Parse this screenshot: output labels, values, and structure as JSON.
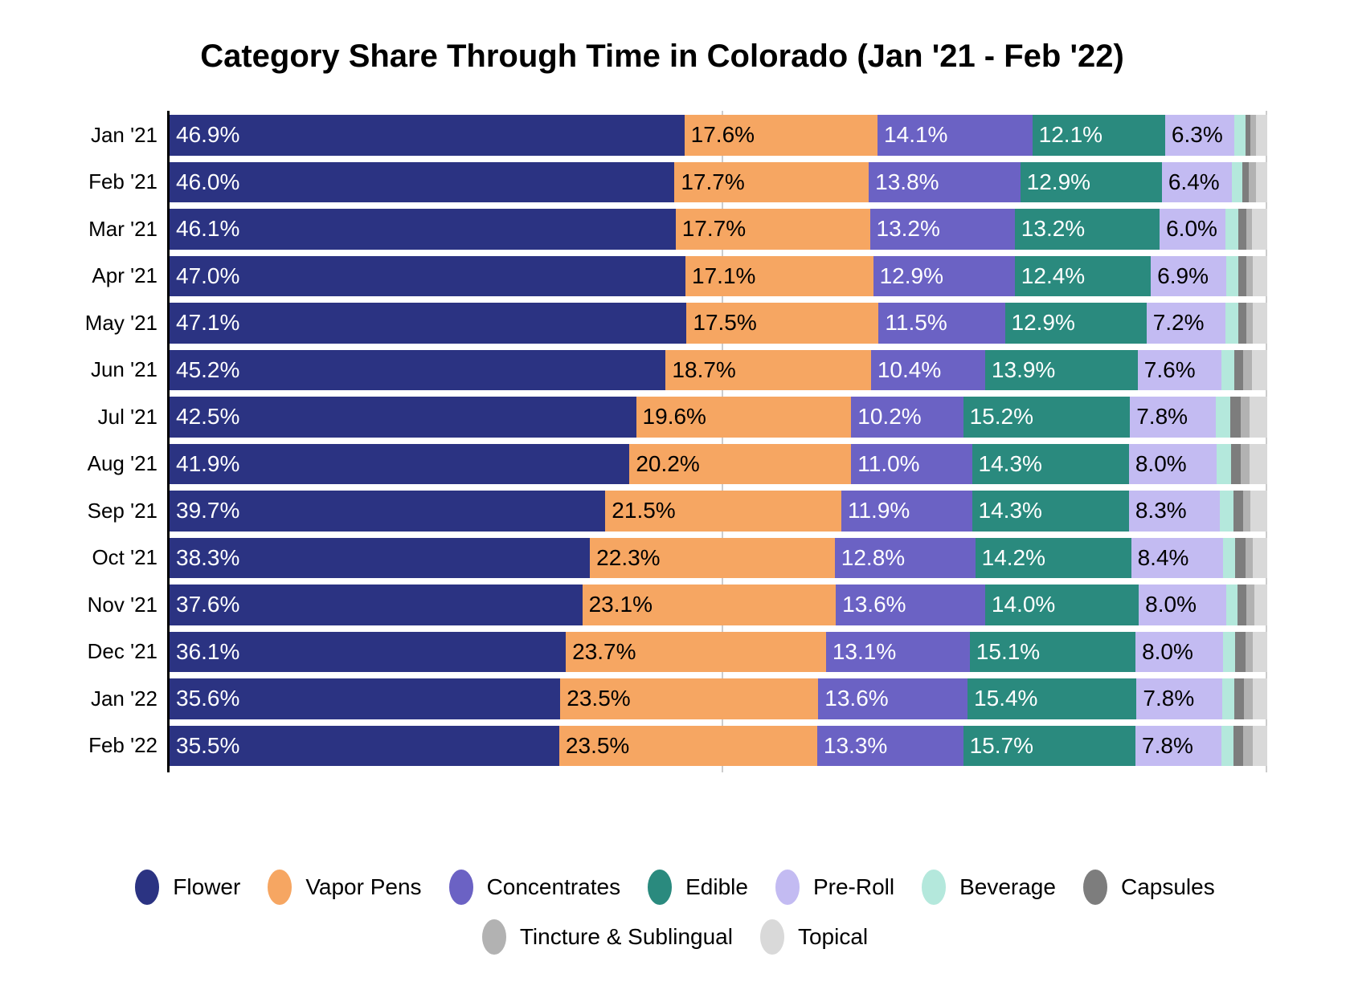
{
  "title": "Category Share Through Time in Colorado (Jan '21 - Feb '22)",
  "chart_data": {
    "type": "bar",
    "orientation": "horizontal-stacked",
    "unit": "%",
    "xlim": [
      0,
      100
    ],
    "gridlines_at_percent": [
      50,
      100
    ],
    "grid_color": "#cccccc",
    "axis_color": "#000000",
    "labeled_segment_count": 5,
    "categories": [
      {
        "name": "Flower",
        "slug": "flower",
        "color": "#2b3382",
        "label_color": "#ffffff"
      },
      {
        "name": "Vapor Pens",
        "slug": "vapor-pens",
        "color": "#f6a662",
        "label_color": "#000000"
      },
      {
        "name": "Concentrates",
        "slug": "concentrates",
        "color": "#6b62c4",
        "label_color": "#ffffff"
      },
      {
        "name": "Edible",
        "slug": "edible",
        "color": "#2a8a7e",
        "label_color": "#ffffff"
      },
      {
        "name": "Pre-Roll",
        "slug": "pre-roll",
        "color": "#c3bbf2",
        "label_color": "#000000"
      },
      {
        "name": "Beverage",
        "slug": "beverage",
        "color": "#b4e8dc",
        "label_color": "#000000"
      },
      {
        "name": "Capsules",
        "slug": "capsules",
        "color": "#7d7d7d",
        "label_color": "#ffffff"
      },
      {
        "name": "Tincture & Sublingual",
        "slug": "tincture-sublingual",
        "color": "#b2b2b2",
        "label_color": "#000000"
      },
      {
        "name": "Topical",
        "slug": "topical",
        "color": "#d9d9d9",
        "label_color": "#000000"
      }
    ],
    "rows": [
      {
        "month": "Jan '21",
        "values": [
          46.9,
          17.6,
          14.1,
          12.1,
          6.3,
          1.0,
          0.5,
          0.5,
          1.0
        ]
      },
      {
        "month": "Feb '21",
        "values": [
          46.0,
          17.7,
          13.8,
          12.9,
          6.4,
          0.9,
          0.6,
          0.7,
          1.0
        ]
      },
      {
        "month": "Mar '21",
        "values": [
          46.1,
          17.7,
          13.2,
          13.2,
          6.0,
          1.2,
          0.7,
          0.5,
          1.4
        ]
      },
      {
        "month": "Apr '21",
        "values": [
          47.0,
          17.1,
          12.9,
          12.4,
          6.9,
          1.1,
          0.7,
          0.6,
          1.3
        ]
      },
      {
        "month": "May '21",
        "values": [
          47.1,
          17.5,
          11.5,
          12.9,
          7.2,
          1.2,
          0.7,
          0.6,
          1.3
        ]
      },
      {
        "month": "Jun '21",
        "values": [
          45.2,
          18.7,
          10.4,
          13.9,
          7.6,
          1.2,
          0.8,
          0.8,
          1.4
        ]
      },
      {
        "month": "Jul '21",
        "values": [
          42.5,
          19.6,
          10.2,
          15.2,
          7.8,
          1.3,
          1.0,
          0.8,
          1.6
        ]
      },
      {
        "month": "Aug '21",
        "values": [
          41.9,
          20.2,
          11.0,
          14.3,
          8.0,
          1.3,
          0.9,
          0.8,
          1.6
        ]
      },
      {
        "month": "Sep '21",
        "values": [
          39.7,
          21.5,
          11.9,
          14.3,
          8.3,
          1.2,
          0.9,
          0.7,
          1.5
        ]
      },
      {
        "month": "Oct '21",
        "values": [
          38.3,
          22.3,
          12.8,
          14.2,
          8.4,
          1.1,
          0.9,
          0.7,
          1.3
        ]
      },
      {
        "month": "Nov '21",
        "values": [
          37.6,
          23.1,
          13.6,
          14.0,
          8.0,
          1.0,
          0.8,
          0.7,
          1.2
        ]
      },
      {
        "month": "Dec '21",
        "values": [
          36.1,
          23.7,
          13.1,
          15.1,
          8.0,
          1.1,
          0.9,
          0.7,
          1.3
        ]
      },
      {
        "month": "Jan '22",
        "values": [
          35.6,
          23.5,
          13.6,
          15.4,
          7.8,
          1.1,
          0.9,
          0.8,
          1.3
        ]
      },
      {
        "month": "Feb '22",
        "values": [
          35.5,
          23.5,
          13.3,
          15.7,
          7.8,
          1.1,
          0.9,
          0.9,
          1.3
        ]
      }
    ]
  },
  "legend": {
    "rows": [
      [
        "Flower",
        "Vapor Pens",
        "Concentrates",
        "Edible",
        "Pre-Roll",
        "Beverage",
        "Capsules"
      ],
      [
        "Tincture & Sublingual",
        "Topical"
      ]
    ]
  }
}
